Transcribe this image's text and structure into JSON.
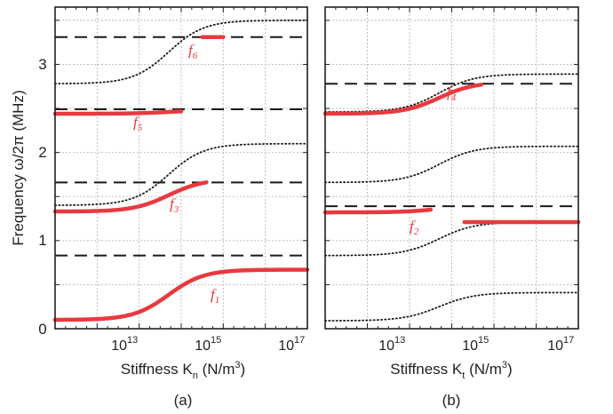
{
  "chart_data": [
    {
      "panel": "(a)",
      "type": "line",
      "ylabel_prefix": "Frequency",
      "ylabel_math": "ω/2π",
      "ylabel_unit": "(MHz)",
      "xlabel_prefix": "Stiffness",
      "xlabel_var": "K",
      "xlabel_sub": "n",
      "xlabel_unit_main": "(N/m",
      "xlabel_unit_sup": "3",
      "xlabel_unit_end": ")",
      "x_scale": "log",
      "xlim_log10": [
        11,
        17
      ],
      "ylim": [
        0,
        3.65
      ],
      "x_ticks": [
        {
          "base": "10",
          "exp": "13",
          "log10": 13
        },
        {
          "base": "10",
          "exp": "15",
          "log10": 15
        },
        {
          "base": "10",
          "exp": "17",
          "log10": 17
        }
      ],
      "y_ticks": [
        {
          "label": "0",
          "value": 0
        },
        {
          "label": "1",
          "value": 1
        },
        {
          "label": "2",
          "value": 2
        },
        {
          "label": "3",
          "value": 3
        }
      ],
      "grid": true,
      "dashed_lines": [
        0.83,
        1.66,
        2.49,
        3.31
      ],
      "dotted_curves": [
        {
          "low": 1.4,
          "high": 2.1
        },
        {
          "low": 2.78,
          "high": 3.5
        }
      ],
      "red_curves": [
        {
          "low": 0.1,
          "high": 0.67,
          "x_start_log10": 11,
          "x_end_log10": 17
        },
        {
          "low": 1.33,
          "high": 1.7,
          "x_start_log10": 11,
          "x_end_log10": 14.6
        },
        {
          "low": 2.44,
          "high": 2.48,
          "x_start_log10": 11,
          "x_end_log10": 14.0
        },
        {
          "low": 3.31,
          "high": 3.31,
          "x_start_log10": 14.5,
          "x_end_log10": 15.0
        }
      ],
      "mode_labels": [
        {
          "letter": "f",
          "sub": "1",
          "at": [
            15.08,
            0.4
          ]
        },
        {
          "letter": "f",
          "sub": "3",
          "at": [
            14.35,
            1.36
          ]
        },
        {
          "letter": "f",
          "sub": "5",
          "at": [
            13.85,
            2.26
          ]
        },
        {
          "letter": "f",
          "sub": "6",
          "at": [
            14.55,
            3.04
          ]
        }
      ],
      "caption": "(a)"
    },
    {
      "panel": "(b)",
      "type": "line",
      "xlabel_prefix": "Stiffness",
      "xlabel_var": "K",
      "xlabel_sub": "t",
      "xlabel_unit_main": "(N/m",
      "xlabel_unit_sup": "3",
      "xlabel_unit_end": ")",
      "x_scale": "log",
      "xlim_log10": [
        11,
        17
      ],
      "ylim": [
        0,
        3.65
      ],
      "x_ticks": [
        {
          "base": "10",
          "exp": "13",
          "log10": 13
        },
        {
          "base": "10",
          "exp": "15",
          "log10": 15
        },
        {
          "base": "10",
          "exp": "17",
          "log10": 17
        }
      ],
      "grid": true,
      "dashed_lines": [
        1.39,
        2.78
      ],
      "dotted_curves": [
        {
          "low": 0.09,
          "high": 0.41
        },
        {
          "low": 0.83,
          "high": 1.21
        },
        {
          "low": 1.66,
          "high": 2.07
        },
        {
          "low": 2.46,
          "high": 2.89
        }
      ],
      "red_curves": [
        {
          "low": 1.32,
          "high": 1.4,
          "x_start_log10": 11,
          "x_end_log10": 13.5
        },
        {
          "low": 1.21,
          "high": 1.21,
          "x_start_log10": 14.3,
          "x_end_log10": 17
        },
        {
          "low": 2.44,
          "high": 2.8,
          "x_start_log10": 11,
          "x_end_log10": 14.7
        }
      ],
      "mode_labels": [
        {
          "letter": "f",
          "sub": "2",
          "at": [
            13.0,
            1.12
          ]
        },
        {
          "letter": "f",
          "sub": "4",
          "at": [
            14.35,
            2.6
          ]
        }
      ],
      "caption": "(b)"
    }
  ],
  "colors": {
    "axis": "#231f20",
    "grid": "#b8b8b8",
    "red": "#e8393f",
    "black_curve": "#1a1a1a"
  }
}
